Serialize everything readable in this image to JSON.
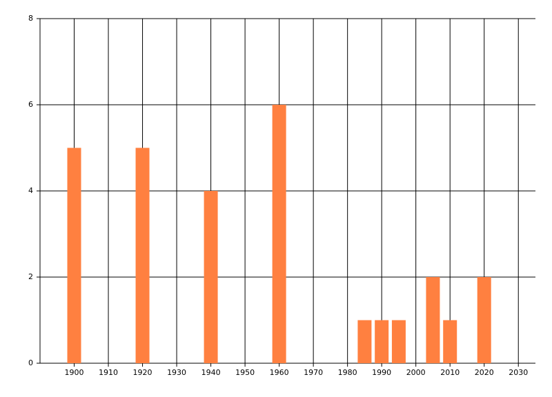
{
  "chart_data": {
    "type": "bar",
    "x": [
      1900,
      1920,
      1940,
      1960,
      1985,
      1990,
      1995,
      2005,
      2010,
      2020
    ],
    "values": [
      5,
      5,
      4,
      6,
      1,
      1,
      1,
      2,
      1,
      2
    ],
    "color": "#ff8040",
    "xlim": [
      1890,
      2035
    ],
    "xticks": [
      1900,
      1910,
      1920,
      1930,
      1940,
      1950,
      1960,
      1970,
      1980,
      1990,
      2000,
      2010,
      2020,
      2030
    ],
    "ylim": [
      0,
      8
    ],
    "yticks": [
      0,
      2,
      4,
      6,
      8
    ],
    "grid": true
  }
}
